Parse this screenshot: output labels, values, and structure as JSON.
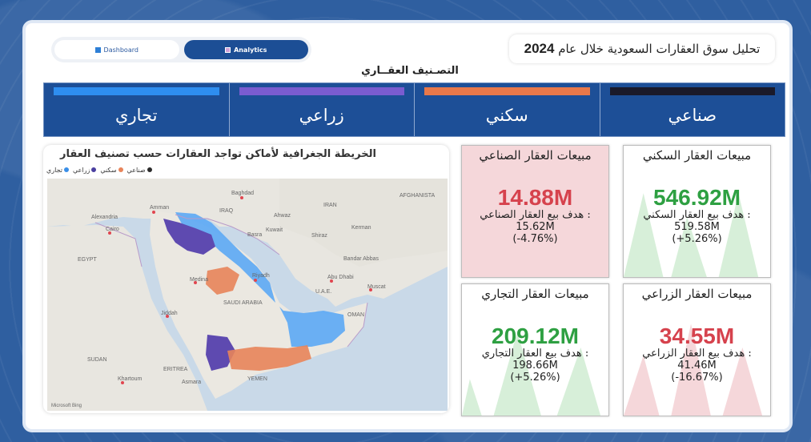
{
  "nav": {
    "dashboard_label": "Dashboard",
    "analytics_label": "Analytics"
  },
  "header": {
    "title_text": "تحليل سوق العقارات السعودية خلال عام",
    "title_year": "2024"
  },
  "categories": {
    "section_title": "التصـنيف العقــاري",
    "items": [
      {
        "label": "تجاري",
        "color": "#2e8ef0"
      },
      {
        "label": "زراعي",
        "color": "#7a5cd0"
      },
      {
        "label": "سكني",
        "color": "#e8784a"
      },
      {
        "label": "صناعي",
        "color": "#1a1a2a"
      }
    ]
  },
  "map": {
    "title": "الخريطة الجغرافية لأماكن تواجد العقارات حسب تصنيف العقار",
    "legend": [
      {
        "label": "صناعي",
        "color": "#2a2a2a"
      },
      {
        "label": "سكني",
        "color": "#e8845a"
      },
      {
        "label": "زراعي",
        "color": "#4a3fa0"
      },
      {
        "label": "تجاري",
        "color": "#3a8fe8"
      }
    ],
    "place_labels": {
      "afghanistan": "AFGHANISTA",
      "baghdad": "Baghdad",
      "iraq": "IRAQ",
      "amman": "Amman",
      "alexandria": "Alexandria",
      "cairo": "Cairo",
      "egypt": "EGYPT",
      "kuwait": "Kuwait",
      "basra": "Basra",
      "ahwaz": "Ahwaz",
      "shiraz": "Shiraz",
      "iran": "IRAN",
      "kerman": "Kerman",
      "bandar_abbas": "Bandar Abbas",
      "riyadh": "Riyadh",
      "uae": "U.A.E.",
      "abu_dhabi": "Abu Dhabi",
      "muscat": "Muscat",
      "oman": "OMAN",
      "saudi": "SAUDI ARABIA",
      "medina": "Medina",
      "jeddah": "Jiddah",
      "sudan": "SUDAN",
      "khartoum": "Khartoum",
      "eritrea": "ERITREA",
      "asmara": "Asmara",
      "yemen": "YEMEN",
      "microsoft_bing": "Microsoft Bing"
    }
  },
  "kpis": {
    "industrial": {
      "title": "مبيعات العقار الصناعي",
      "value": "14.88M",
      "target_label": "هدف بيع العقار الصناعي :",
      "target": "15.62M",
      "change": "(-4.76%)",
      "status": "red"
    },
    "residential": {
      "title": "مبيعات العقار السكني",
      "value": "546.92M",
      "target_label": "هدف بيع العقار السكني :",
      "target": "519.58M",
      "change": "(+5.26%)",
      "status": "green"
    },
    "commercial": {
      "title": "مبيعات العقار التجاري",
      "value": "209.12M",
      "target_label": "هدف بيع العقار التجاري :",
      "target": "198.66M",
      "change": "(+5.26%)",
      "status": "green"
    },
    "agricultural": {
      "title": "مبيعات العقار الزراعي",
      "value": "34.55M",
      "target_label": "هدف بيع العقار الزراعي :",
      "target": "41.46M",
      "change": "(-16.67%)",
      "status": "red"
    }
  }
}
